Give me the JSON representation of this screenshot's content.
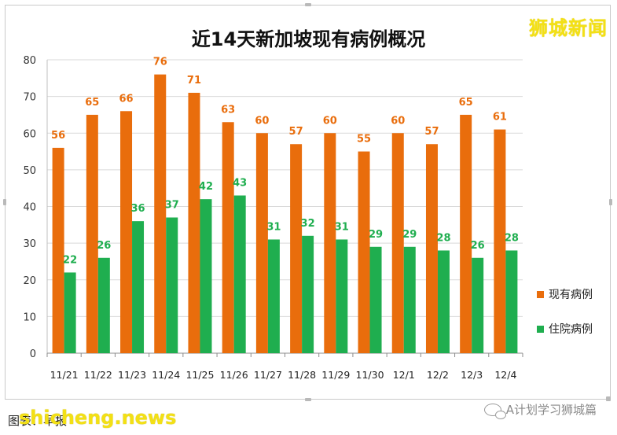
{
  "branding": {
    "watermark": "狮城新闻",
    "footer_site": "shicheng.news"
  },
  "footer": {
    "source_label": "图表：早报",
    "wechat_account": "A计划学习狮城篇"
  },
  "colors": {
    "current_cases": "#e96d0c",
    "hospitalized": "#1fae4f",
    "gridline": "#d9d9d9",
    "watermark": "#f3e015"
  },
  "chart_data": {
    "type": "bar",
    "title": "近14天新加坡现有病例概况",
    "xlabel": "",
    "ylabel": "",
    "ylim": [
      0,
      80
    ],
    "yticks": [
      0,
      10,
      20,
      30,
      40,
      50,
      60,
      70,
      80
    ],
    "grid": true,
    "legend_position": "right",
    "categories": [
      "11/21",
      "11/22",
      "11/23",
      "11/24",
      "11/25",
      "11/26",
      "11/27",
      "11/28",
      "11/29",
      "11/30",
      "12/1",
      "12/2",
      "12/3",
      "12/4"
    ],
    "series": [
      {
        "name": "现有病例",
        "color": "#e96d0c",
        "values": [
          56,
          65,
          66,
          76,
          71,
          63,
          60,
          57,
          60,
          55,
          60,
          57,
          65,
          61
        ]
      },
      {
        "name": "住院病例",
        "color": "#1fae4f",
        "values": [
          22,
          26,
          36,
          37,
          42,
          43,
          31,
          32,
          31,
          29,
          29,
          28,
          26,
          28
        ]
      }
    ]
  }
}
